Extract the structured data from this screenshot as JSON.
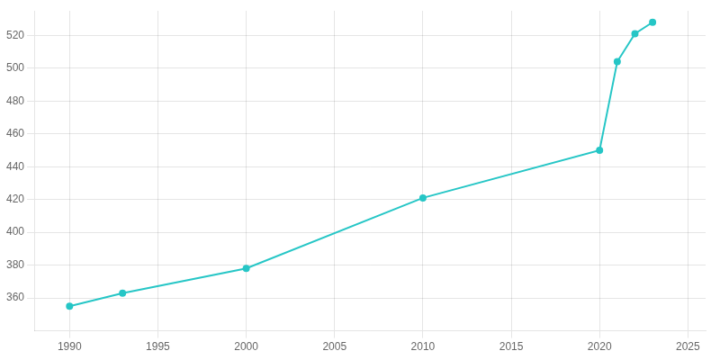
{
  "chart_data": {
    "type": "line",
    "x": [
      1990,
      1993,
      2000,
      2010,
      2020,
      2021,
      2022,
      2023
    ],
    "values": [
      355,
      363,
      378,
      421,
      450,
      504,
      521,
      528
    ],
    "color": "#26C6C6",
    "marker": "circle",
    "xlim": [
      1988,
      2026
    ],
    "ylim": [
      340,
      535
    ],
    "xticks": [
      1990,
      1995,
      2000,
      2005,
      2010,
      2015,
      2020,
      2025
    ],
    "yticks": [
      360,
      380,
      400,
      420,
      440,
      460,
      480,
      500,
      520
    ],
    "grid": true
  }
}
